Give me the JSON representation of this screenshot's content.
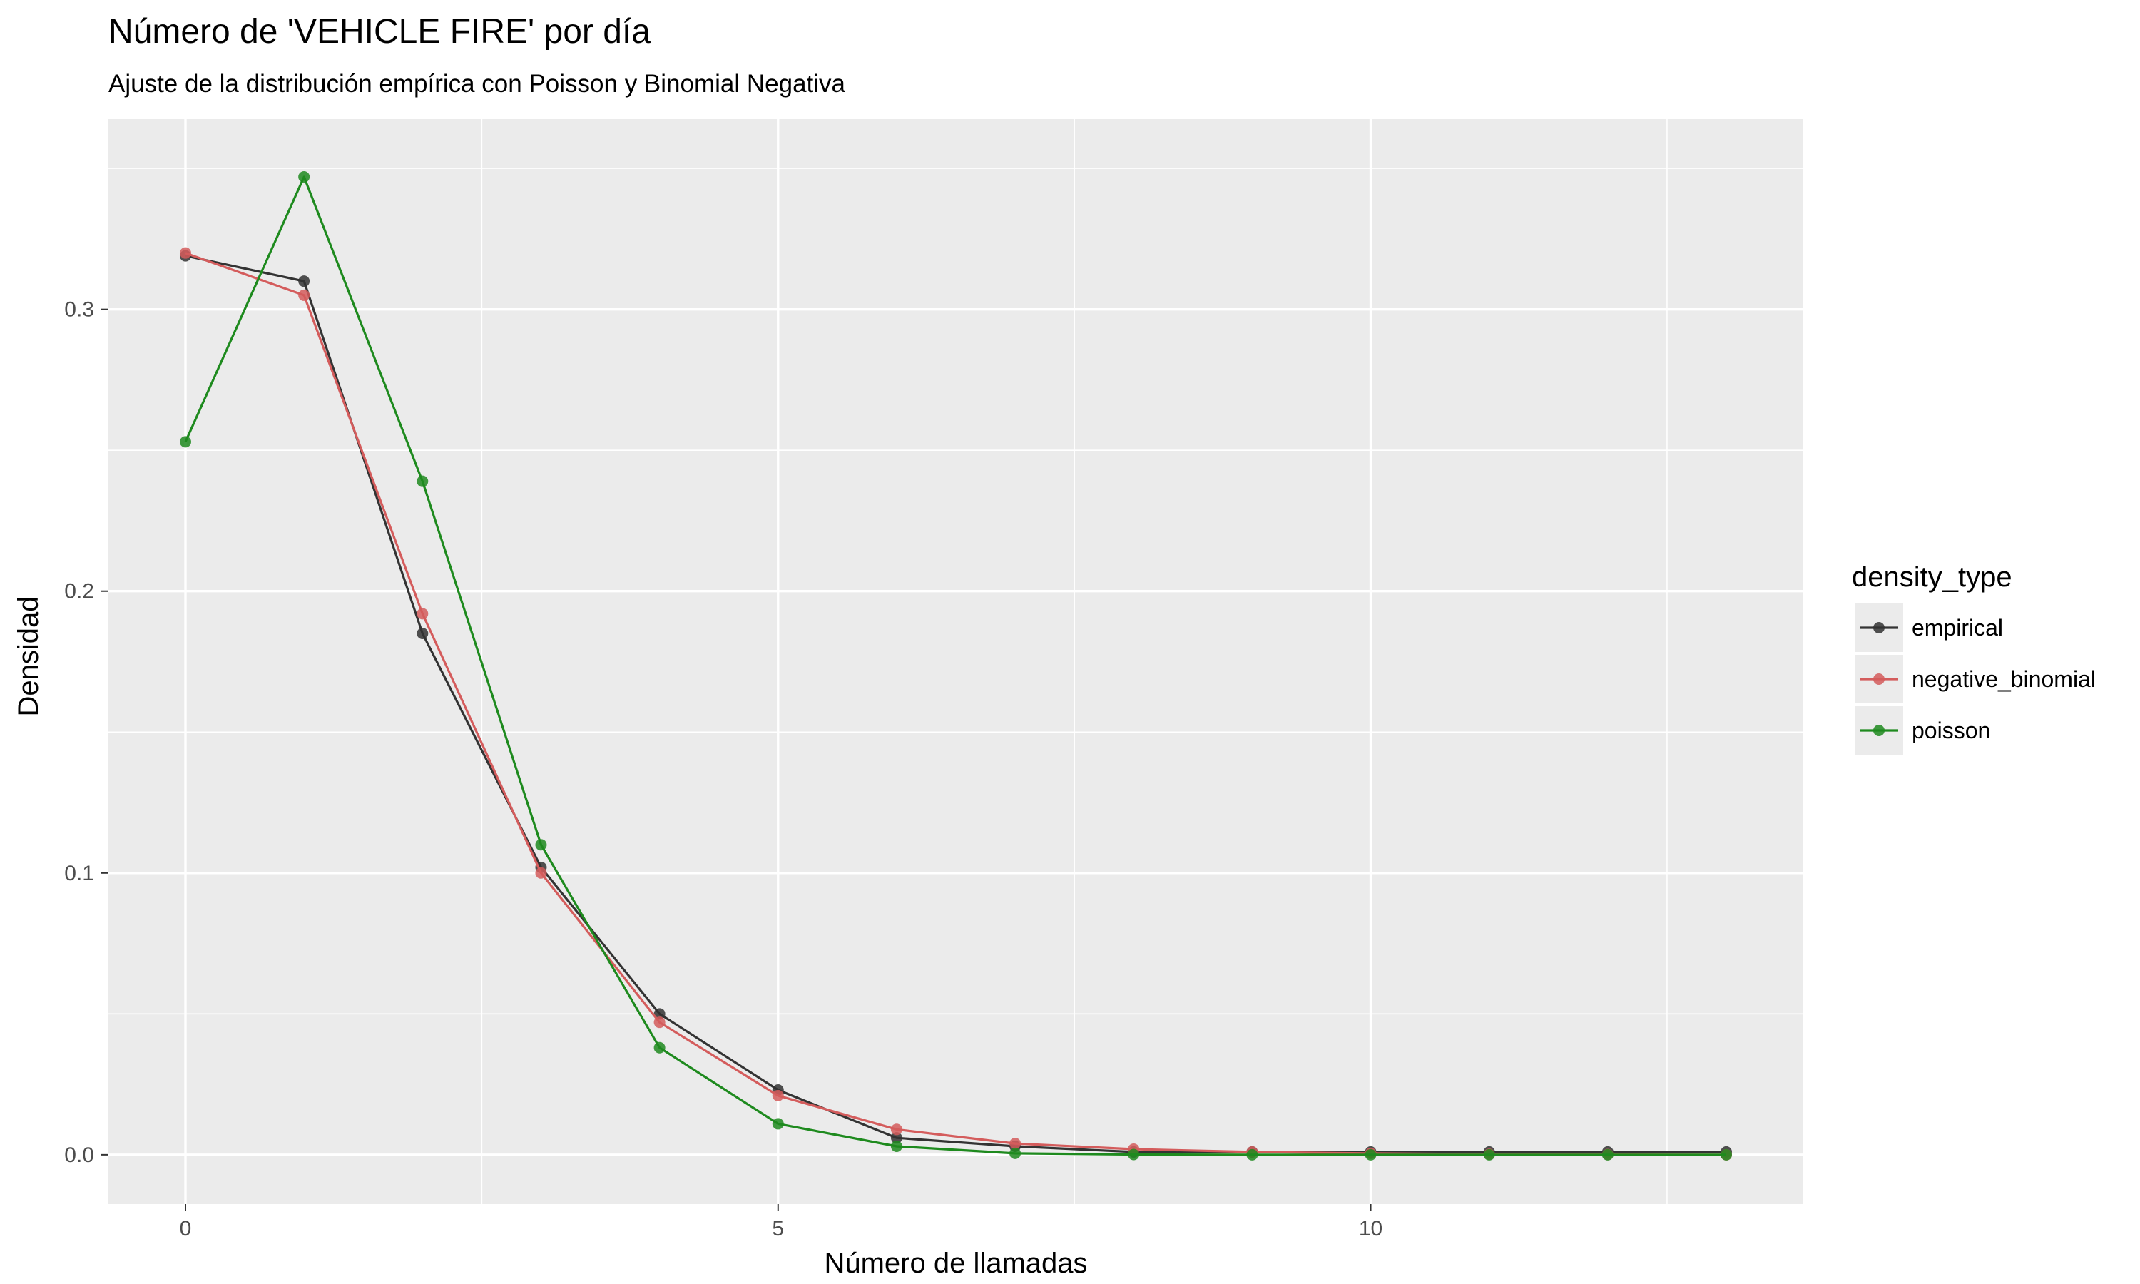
{
  "chart_data": {
    "type": "line",
    "title": "Número de 'VEHICLE FIRE' por día",
    "subtitle": "Ajuste de la distribución empírica con Poisson y Binomial Negativa",
    "xlabel": "Número de llamadas",
    "ylabel": "Densidad",
    "xlim": [
      -0.65,
      13.65
    ],
    "ylim": [
      -0.0175,
      0.3675
    ],
    "x_ticks": [
      0,
      5,
      10
    ],
    "x_tick_labels": [
      "0",
      "5",
      "10"
    ],
    "y_ticks": [
      0.0,
      0.1,
      0.2,
      0.3
    ],
    "y_tick_labels": [
      "0.0",
      "0.1",
      "0.2",
      "0.3"
    ],
    "grid": true,
    "markers": true,
    "legend": {
      "title": "density_type",
      "position": "right"
    },
    "x": [
      0,
      1,
      2,
      3,
      4,
      5,
      6,
      7,
      8,
      9,
      10,
      11,
      12,
      13
    ],
    "series": [
      {
        "name": "empirical",
        "color": "#333333",
        "values": [
          0.319,
          0.31,
          0.185,
          0.102,
          0.05,
          0.023,
          0.006,
          0.003,
          0.001,
          0.001,
          0.001,
          0.001,
          0.001,
          0.001
        ]
      },
      {
        "name": "negative_binomial",
        "color": "#d45c5c",
        "values": [
          0.32,
          0.305,
          0.192,
          0.1,
          0.047,
          0.021,
          0.009,
          0.004,
          0.002,
          0.001,
          0.0005,
          0.0002,
          0.0001,
          0.0
        ]
      },
      {
        "name": "poisson",
        "color": "#1e8a1e",
        "values": [
          0.253,
          0.347,
          0.239,
          0.11,
          0.038,
          0.011,
          0.003,
          0.0005,
          0.0001,
          0.0,
          0.0,
          0.0,
          0.0,
          0.0
        ]
      }
    ]
  }
}
